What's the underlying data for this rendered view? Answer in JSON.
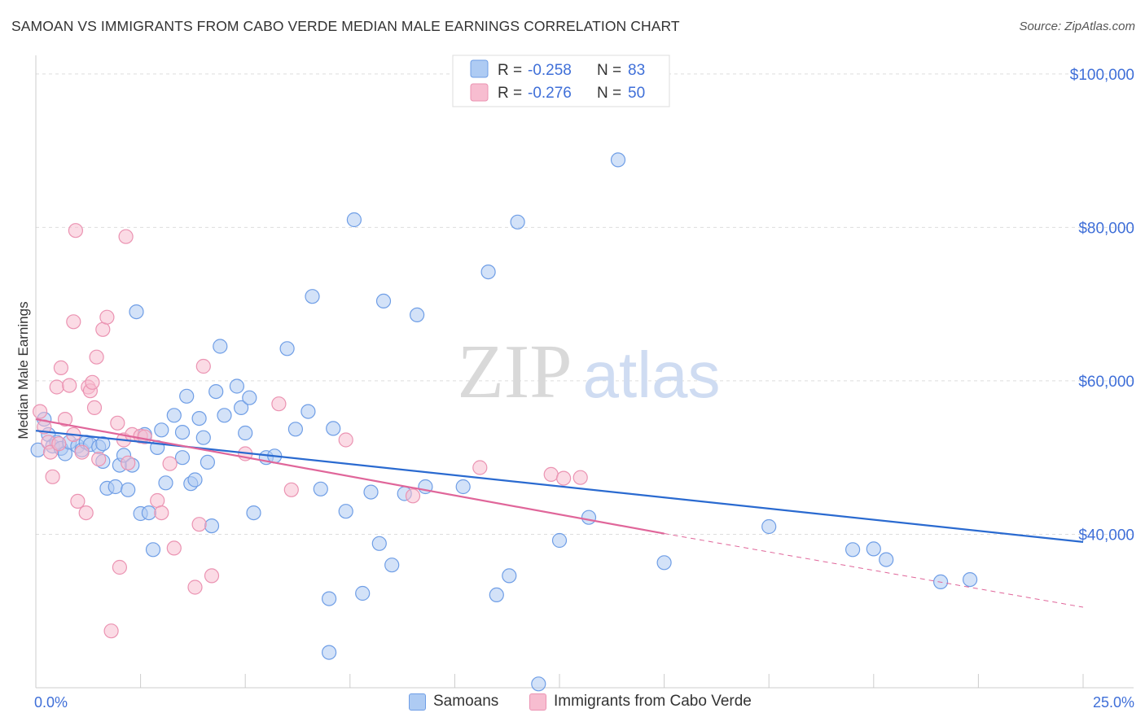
{
  "header": {
    "title": "SAMOAN VS IMMIGRANTS FROM CABO VERDE MEDIAN MALE EARNINGS CORRELATION CHART",
    "source": "Source: ZipAtlas.com"
  },
  "watermark": {
    "zip": "ZIP",
    "atlas": "atlas"
  },
  "legend_top": {
    "rows": [
      {
        "r_label": "R = ",
        "r_value": "-0.258",
        "n_label": "N = ",
        "n_value": "83"
      },
      {
        "r_label": "R = ",
        "r_value": "-0.276",
        "n_label": "N = ",
        "n_value": "50"
      }
    ]
  },
  "legend_bottom": {
    "items": [
      {
        "label": "Samoans"
      },
      {
        "label": "Immigrants from Cabo Verde"
      }
    ]
  },
  "colors": {
    "blue_fill": "#aecbf3",
    "blue_stroke": "#6f9ee6",
    "blue_line": "#2a6ad0",
    "pink_fill": "#f7bdd0",
    "pink_stroke": "#eb93b2",
    "pink_line": "#e0669a",
    "grid": "#dddddd",
    "tick_text": "#3f6fd8"
  },
  "chart_data": {
    "type": "scatter",
    "title": "SAMOAN VS IMMIGRANTS FROM CABO VERDE MEDIAN MALE EARNINGS CORRELATION CHART",
    "xlabel": "",
    "ylabel": "Median Male Earnings",
    "xlim": [
      0,
      25
    ],
    "ylim": [
      20000,
      102000
    ],
    "x_tick_labels": [
      "0.0%",
      "25.0%"
    ],
    "y_ticks": [
      {
        "value": 40000,
        "label": "$40,000"
      },
      {
        "value": 60000,
        "label": "$60,000"
      },
      {
        "value": 80000,
        "label": "$80,000"
      },
      {
        "value": 100000,
        "label": "$100,000"
      }
    ],
    "grid": true,
    "legend": "top-center",
    "series": [
      {
        "name": "Samoans",
        "r": -0.258,
        "n": 83,
        "trend": {
          "x": [
            0,
            25
          ],
          "y": [
            53500,
            39000
          ]
        },
        "points": [
          [
            0.05,
            51000
          ],
          [
            0.2,
            55000
          ],
          [
            0.3,
            53000
          ],
          [
            0.4,
            51500
          ],
          [
            0.5,
            52000
          ],
          [
            0.6,
            51200
          ],
          [
            0.7,
            50500
          ],
          [
            0.8,
            52000
          ],
          [
            1.0,
            51500
          ],
          [
            1.1,
            51000
          ],
          [
            1.2,
            52000
          ],
          [
            1.3,
            51700
          ],
          [
            1.5,
            51400
          ],
          [
            1.6,
            51800
          ],
          [
            1.6,
            49500
          ],
          [
            1.7,
            46000
          ],
          [
            1.9,
            46200
          ],
          [
            2.0,
            49000
          ],
          [
            2.1,
            50300
          ],
          [
            2.2,
            45800
          ],
          [
            2.3,
            49000
          ],
          [
            2.4,
            69000
          ],
          [
            2.5,
            42700
          ],
          [
            2.6,
            53000
          ],
          [
            2.7,
            42800
          ],
          [
            2.8,
            38000
          ],
          [
            2.9,
            51300
          ],
          [
            3.0,
            53600
          ],
          [
            3.1,
            46700
          ],
          [
            3.3,
            55500
          ],
          [
            3.5,
            50000
          ],
          [
            3.5,
            53300
          ],
          [
            3.6,
            58000
          ],
          [
            3.7,
            46600
          ],
          [
            3.8,
            47100
          ],
          [
            3.9,
            55100
          ],
          [
            4.0,
            52600
          ],
          [
            4.1,
            49400
          ],
          [
            4.2,
            41100
          ],
          [
            4.3,
            58600
          ],
          [
            4.4,
            64500
          ],
          [
            4.5,
            55500
          ],
          [
            4.8,
            59300
          ],
          [
            4.9,
            56500
          ],
          [
            5.0,
            53200
          ],
          [
            5.1,
            57800
          ],
          [
            5.2,
            42800
          ],
          [
            5.5,
            50000
          ],
          [
            5.7,
            50200
          ],
          [
            6.0,
            64200
          ],
          [
            6.2,
            53700
          ],
          [
            6.5,
            56000
          ],
          [
            6.6,
            71000
          ],
          [
            6.8,
            45900
          ],
          [
            7.0,
            31600
          ],
          [
            7.0,
            24600
          ],
          [
            7.1,
            53800
          ],
          [
            7.4,
            43000
          ],
          [
            7.6,
            81000
          ],
          [
            7.8,
            32300
          ],
          [
            8.0,
            45500
          ],
          [
            8.2,
            38800
          ],
          [
            8.3,
            70400
          ],
          [
            8.5,
            36000
          ],
          [
            8.8,
            45300
          ],
          [
            9.1,
            68600
          ],
          [
            9.3,
            46200
          ],
          [
            10.2,
            46200
          ],
          [
            10.8,
            74200
          ],
          [
            11.0,
            32100
          ],
          [
            11.3,
            34600
          ],
          [
            11.5,
            80700
          ],
          [
            12.0,
            20500
          ],
          [
            12.5,
            39200
          ],
          [
            13.2,
            42200
          ],
          [
            13.9,
            88800
          ],
          [
            15.0,
            36300
          ],
          [
            17.5,
            41000
          ],
          [
            19.5,
            38000
          ],
          [
            20.0,
            38100
          ],
          [
            20.3,
            36700
          ],
          [
            21.6,
            33800
          ],
          [
            22.3,
            34100
          ]
        ]
      },
      {
        "name": "Immigrants from Cabo Verde",
        "r": -0.276,
        "n": 50,
        "trend": {
          "x": [
            0,
            15
          ],
          "y": [
            55000,
            40100
          ]
        },
        "trend_dashed": {
          "x": [
            15,
            25
          ],
          "y": [
            40100,
            30500
          ]
        },
        "points": [
          [
            0.1,
            56000
          ],
          [
            0.2,
            54000
          ],
          [
            0.3,
            52000
          ],
          [
            0.35,
            50700
          ],
          [
            0.4,
            47500
          ],
          [
            0.5,
            59200
          ],
          [
            0.55,
            51800
          ],
          [
            0.6,
            61700
          ],
          [
            0.7,
            55000
          ],
          [
            0.8,
            59400
          ],
          [
            0.9,
            53000
          ],
          [
            0.9,
            67700
          ],
          [
            0.95,
            79600
          ],
          [
            1.0,
            44300
          ],
          [
            1.1,
            50700
          ],
          [
            1.2,
            42800
          ],
          [
            1.25,
            59200
          ],
          [
            1.3,
            58700
          ],
          [
            1.35,
            59800
          ],
          [
            1.4,
            56500
          ],
          [
            1.45,
            63100
          ],
          [
            1.5,
            49800
          ],
          [
            1.6,
            66700
          ],
          [
            1.7,
            68300
          ],
          [
            1.8,
            27400
          ],
          [
            1.95,
            54500
          ],
          [
            2.0,
            35700
          ],
          [
            2.1,
            52300
          ],
          [
            2.15,
            78800
          ],
          [
            2.2,
            49300
          ],
          [
            2.3,
            53000
          ],
          [
            2.5,
            52800
          ],
          [
            2.6,
            52700
          ],
          [
            2.9,
            44400
          ],
          [
            3.0,
            42800
          ],
          [
            3.2,
            49200
          ],
          [
            3.3,
            38200
          ],
          [
            3.8,
            33100
          ],
          [
            3.9,
            41300
          ],
          [
            4.0,
            61900
          ],
          [
            4.2,
            34600
          ],
          [
            5.0,
            50500
          ],
          [
            5.8,
            57000
          ],
          [
            6.1,
            45800
          ],
          [
            7.4,
            52300
          ],
          [
            9.0,
            45000
          ],
          [
            10.6,
            48700
          ],
          [
            12.3,
            47800
          ],
          [
            12.6,
            47300
          ],
          [
            13.0,
            47400
          ]
        ]
      }
    ]
  }
}
